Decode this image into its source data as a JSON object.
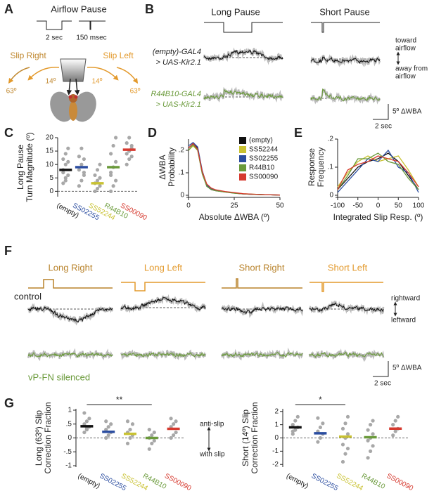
{
  "figure": {
    "A": {
      "letter": "A",
      "title": "Airflow Pause",
      "long": "2 sec",
      "short": "150 msec",
      "slip_right": "Slip Right",
      "slip_left": "Slip Left",
      "angle_small": "14º",
      "angle_large": "63º"
    },
    "B": {
      "letter": "B",
      "long": "Long Pause",
      "short": "Short Pause",
      "control": [
        "(empty)-GAL4",
        "> UAS-Kir2.1"
      ],
      "silenced": [
        "R44B10-GAL4",
        "> UAS-Kir2.1"
      ],
      "toward": [
        "toward",
        "airflow"
      ],
      "away": [
        "away from",
        "airflow"
      ],
      "scale_y": "5º ΔWBA",
      "scale_x": "2 sec"
    },
    "F": {
      "letter": "F",
      "conditions": [
        "Long Right",
        "Long Left",
        "Short Right",
        "Short Left"
      ],
      "control": "control",
      "silenced": "vP-FN silenced",
      "rightward": "rightward",
      "leftward": "leftward",
      "scale_y": "5º ΔWBA",
      "scale_x": "2 sec"
    }
  },
  "chart_data": [
    {
      "type": "strip",
      "panel": "C",
      "ylabel": [
        "Long Pause",
        "Turn Magnitude (º)"
      ],
      "categories": [
        "(empty)",
        "SS02255",
        "SS52244",
        "R44B10",
        "SS00090"
      ],
      "colors": [
        "#111111",
        "#2b4da0",
        "#c9c232",
        "#6a9a3a",
        "#d63a2f"
      ],
      "means": [
        8,
        9,
        3,
        9,
        15.5
      ],
      "points": [
        [
          3,
          5,
          6,
          8,
          10,
          11,
          12,
          14,
          16,
          7,
          4
        ],
        [
          2,
          4,
          7,
          8,
          10,
          12,
          13,
          16,
          6
        ],
        [
          0,
          1,
          2,
          3,
          4,
          5,
          6,
          8,
          10
        ],
        [
          0,
          2,
          4,
          6,
          9,
          11,
          14,
          17,
          20,
          7
        ],
        [
          10,
          12,
          13,
          14,
          15,
          17,
          18,
          20,
          16
        ]
      ],
      "refline": 0,
      "ylim": [
        -2,
        20
      ],
      "yticks": [
        0,
        5,
        10,
        15,
        20
      ]
    },
    {
      "type": "line",
      "panel": "D",
      "ylabel": [
        "ΔWBA",
        "Probability"
      ],
      "xlabel": "Absolute ΔWBA (º)",
      "x": [
        0,
        2.5,
        5,
        7.5,
        10,
        12.5,
        15,
        20,
        25,
        30,
        35,
        40,
        45,
        50
      ],
      "series": [
        {
          "name": "(empty)",
          "color": "#111111",
          "values": [
            0.21,
            0.23,
            0.21,
            0.1,
            0.04,
            0.025,
            0.02,
            0.015,
            0.01,
            0.006,
            0.004,
            0.003,
            0.002,
            0.001
          ]
        },
        {
          "name": "SS52244",
          "color": "#c9c232",
          "values": [
            0.2,
            0.22,
            0.2,
            0.1,
            0.045,
            0.03,
            0.022,
            0.016,
            0.011,
            0.007,
            0.005,
            0.003,
            0.002,
            0.001
          ]
        },
        {
          "name": "SS02255",
          "color": "#2b4da0",
          "values": [
            0.22,
            0.235,
            0.215,
            0.11,
            0.045,
            0.028,
            0.021,
            0.015,
            0.01,
            0.006,
            0.004,
            0.003,
            0.002,
            0.001
          ]
        },
        {
          "name": "R44B10",
          "color": "#6a9a3a",
          "values": [
            0.2,
            0.225,
            0.2,
            0.095,
            0.04,
            0.026,
            0.02,
            0.014,
            0.009,
            0.006,
            0.004,
            0.002,
            0.002,
            0.001
          ]
        },
        {
          "name": "SS00090",
          "color": "#d63a2f",
          "values": [
            0.21,
            0.23,
            0.205,
            0.105,
            0.05,
            0.032,
            0.024,
            0.017,
            0.012,
            0.007,
            0.005,
            0.003,
            0.002,
            0.001
          ]
        }
      ],
      "xlim": [
        0,
        50
      ],
      "xticks": [
        0,
        25,
        50
      ],
      "ylim": [
        0,
        0.25
      ],
      "yticks": [
        0,
        {
          "value": 0.1,
          "label": ".1"
        },
        {
          "value": 0.2,
          "label": ".2"
        }
      ],
      "legend": "upper right"
    },
    {
      "type": "line",
      "panel": "E",
      "ylabel": [
        "Response",
        "Frequency"
      ],
      "xlabel": "Integrated Slip Resp. (º)",
      "x": [
        -100,
        -75,
        -50,
        -25,
        0,
        25,
        50,
        75,
        100
      ],
      "series": [
        {
          "name": "(empty)",
          "color": "#111111",
          "values": [
            0.02,
            0.06,
            0.1,
            0.12,
            0.13,
            0.15,
            0.12,
            0.07,
            0.02
          ]
        },
        {
          "name": "SS52244",
          "color": "#c9c232",
          "values": [
            0.03,
            0.08,
            0.12,
            0.14,
            0.12,
            0.13,
            0.14,
            0.09,
            0.03
          ]
        },
        {
          "name": "SS02255",
          "color": "#2b4da0",
          "values": [
            0.01,
            0.05,
            0.09,
            0.13,
            0.12,
            0.16,
            0.1,
            0.08,
            0.01
          ]
        },
        {
          "name": "R44B10",
          "color": "#6a9a3a",
          "values": [
            0.02,
            0.07,
            0.13,
            0.13,
            0.15,
            0.12,
            0.11,
            0.06,
            0.02
          ]
        },
        {
          "name": "SS00090",
          "color": "#d63a2f",
          "values": [
            0.02,
            0.09,
            0.11,
            0.12,
            0.14,
            0.13,
            0.12,
            0.08,
            0.03
          ]
        }
      ],
      "xlim": [
        -100,
        100
      ],
      "xticks": [
        -100,
        -50,
        0,
        50,
        100
      ],
      "ylim": [
        0,
        0.2
      ],
      "yticks": [
        0,
        {
          "value": 0.1,
          "label": ".1"
        },
        {
          "value": 0.2,
          "label": ".2"
        }
      ]
    },
    {
      "type": "strip",
      "panel": "G",
      "ylabel": [
        "Long (63º) Slip",
        "Correction Fraction"
      ],
      "annotation": "**",
      "side_labels": [
        "anti-slip",
        "with slip"
      ],
      "categories": [
        "(empty)",
        "SS02255",
        "SS52244",
        "R44B10",
        "SS00090"
      ],
      "colors": [
        "#111111",
        "#2b4da0",
        "#c9c232",
        "#6a9a3a",
        "#d63a2f"
      ],
      "means": [
        0.42,
        0.22,
        0.15,
        0.0,
        0.33
      ],
      "points": [
        [
          0.2,
          0.3,
          0.4,
          0.5,
          0.6,
          0.7,
          0.9,
          0.35
        ],
        [
          0,
          0.1,
          0.2,
          0.3,
          0.4,
          0.5,
          0.6
        ],
        [
          -0.2,
          0,
          0.1,
          0.2,
          0.3,
          0.5,
          0.6
        ],
        [
          -0.4,
          -0.2,
          -0.1,
          0,
          0.1,
          0.2,
          0.3
        ],
        [
          0,
          0.1,
          0.2,
          0.4,
          0.5,
          0.6,
          0.7
        ]
      ],
      "refline": 0,
      "ylim": [
        -1.05,
        1.05
      ],
      "yticks": [
        -1,
        {
          "value": -0.5,
          "label": "-.5"
        },
        0,
        {
          "value": 0.5,
          "label": ".5"
        },
        1
      ]
    },
    {
      "type": "strip",
      "ylabel": [
        "Short (14º) Slip",
        "Correction Fraction"
      ],
      "annotation": "*",
      "categories": [
        "(empty)",
        "SS02255",
        "SS52244",
        "R44B10",
        "SS00090"
      ],
      "colors": [
        "#111111",
        "#2b4da0",
        "#c9c232",
        "#6a9a3a",
        "#d63a2f"
      ],
      "means": [
        0.8,
        0.35,
        0.1,
        0.05,
        0.7
      ],
      "points": [
        [
          0.3,
          0.6,
          0.8,
          1,
          1.3,
          1.6,
          0.5
        ],
        [
          -0.3,
          0,
          0.3,
          0.5,
          0.8,
          1.1,
          1.5
        ],
        [
          -1.8,
          -1.2,
          -0.8,
          -0.5,
          0,
          0.3,
          0.7,
          1.1,
          1.6
        ],
        [
          -1.5,
          -1,
          -0.6,
          -0.2,
          0,
          0.3,
          0.6,
          1,
          1.3
        ],
        [
          0.2,
          0.5,
          0.7,
          1,
          1.3,
          1.6
        ]
      ],
      "refline": 0,
      "ylim": [
        -2.2,
        2.2
      ],
      "yticks": [
        -2,
        -1,
        0,
        1,
        2
      ]
    }
  ]
}
